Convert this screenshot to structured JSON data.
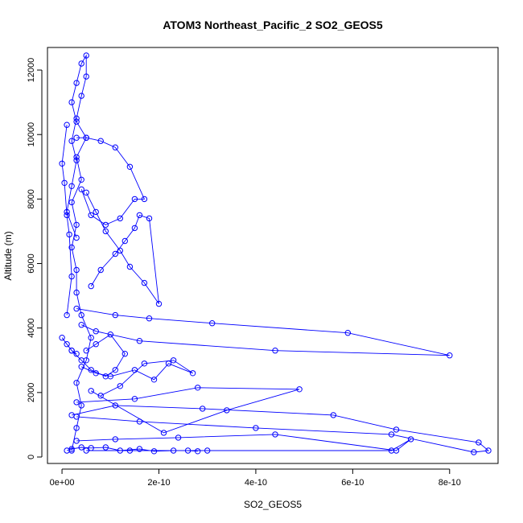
{
  "chart_data": {
    "type": "line",
    "title": "ATOM3 Northeast_Pacific_2 SO2_GEOS5",
    "xlabel": "SO2_GEOS5",
    "ylabel": "Altitude (m)",
    "xlim": [
      -3e-11,
      9e-10
    ],
    "ylim": [
      -200,
      12700
    ],
    "x_ticks": [
      0,
      2e-10,
      4e-10,
      6e-10,
      8e-10
    ],
    "x_tick_labels": [
      "0e+00",
      "2e-10",
      "4e-10",
      "6e-10",
      "8e-10"
    ],
    "y_ticks": [
      0,
      2000,
      4000,
      6000,
      8000,
      10000,
      12000
    ],
    "y_tick_labels": [
      "0",
      "2000",
      "4000",
      "6000",
      "8000",
      "10000",
      "12000"
    ],
    "series_color": "#0000ff",
    "marker": "open-circle",
    "grid": false,
    "series": [
      {
        "x": [
          2e-11,
          3e-11,
          4e-11,
          3e-11,
          5e-11,
          6e-11,
          4e-11,
          3e-11,
          3e-11,
          2e-11,
          3e-11,
          2e-11,
          4e-11,
          3e-11,
          5e-11,
          3e-11,
          2e-11,
          3e-11,
          4e-11,
          5e-11,
          5e-11,
          4e-11,
          3e-11,
          2e-11,
          3e-11,
          2e-11,
          1e-11,
          3e-11
        ],
        "y": [
          200,
          900,
          1600,
          2300,
          3000,
          3700,
          4400,
          5100,
          5800,
          6500,
          7200,
          7900,
          8600,
          9300,
          9900,
          10400,
          11000,
          11600,
          12200,
          12450,
          11800,
          11200,
          10500,
          9800,
          9200,
          8400,
          7600,
          6800
        ]
      },
      {
        "x": [
          3e-11,
          1.1e-10,
          1.8e-10,
          3.1e-10,
          5.9e-10,
          8e-10,
          4.4e-10,
          1.6e-10,
          7e-11,
          4e-11
        ],
        "y": [
          4600,
          4400,
          4300,
          4150,
          3850,
          3150,
          3300,
          3600,
          3900,
          4100
        ]
      },
      {
        "x": [
          3e-11,
          1.5e-10,
          2.8e-10,
          4.9e-10,
          3.4e-10,
          2.1e-10,
          6e-11
        ],
        "y": [
          1700,
          1800,
          2150,
          2100,
          1450,
          750,
          2050
        ]
      },
      {
        "x": [
          2e-11,
          1.1e-10,
          2.9e-10,
          5.6e-10,
          6.9e-10,
          8.6e-10,
          8.8e-10,
          8.5e-10,
          6.8e-10,
          4e-10,
          1.6e-10,
          3e-11
        ],
        "y": [
          1300,
          1600,
          1500,
          1300,
          850,
          450,
          200,
          150,
          700,
          900,
          1100,
          1250
        ]
      },
      {
        "x": [
          3e-11,
          1.1e-10,
          2.4e-10,
          4.4e-10,
          6.9e-10,
          7.2e-10,
          6.8e-10,
          3e-10,
          1.4e-10,
          5e-11
        ],
        "y": [
          500,
          550,
          600,
          700,
          200,
          550,
          200,
          200,
          200,
          200
        ]
      },
      {
        "x": [
          1e-11,
          2e-11,
          4e-11,
          6e-11,
          9e-11,
          1.2e-10,
          1.6e-10,
          1.9e-10,
          2.3e-10,
          2.6e-10,
          2.8e-10
        ],
        "y": [
          200,
          250,
          300,
          280,
          300,
          200,
          250,
          180,
          200,
          200,
          180
        ]
      },
      {
        "x": [
          6e-11,
          8e-11,
          1.1e-10,
          1.3e-10,
          1.5e-10,
          1.6e-10,
          1.8e-10,
          2e-10,
          1.7e-10,
          1.4e-10,
          1.2e-10,
          9e-11,
          7e-11,
          5e-11
        ],
        "y": [
          5300,
          5800,
          6300,
          6700,
          7100,
          7500,
          7400,
          4750,
          5400,
          5900,
          6400,
          7000,
          7600,
          8200
        ]
      },
      {
        "x": [
          3e-11,
          5e-11,
          8e-11,
          1.1e-10,
          1.4e-10,
          1.7e-10,
          1.5e-10,
          1.2e-10,
          9e-11,
          6e-11,
          4e-11
        ],
        "y": [
          9900,
          9900,
          9800,
          9600,
          9000,
          8000,
          8000,
          7400,
          7200,
          7500,
          8300
        ]
      },
      {
        "x": [
          2e-11,
          4e-11,
          6e-11,
          9e-11,
          1.1e-10,
          1.3e-10,
          1e-10,
          7e-11,
          5e-11
        ],
        "y": [
          3300,
          3000,
          2700,
          2500,
          2700,
          3200,
          3800,
          3500,
          3300
        ]
      },
      {
        "x": [
          4e-11,
          7e-11,
          1e-10,
          1.5e-10,
          1.9e-10,
          2.2e-10,
          2.7e-10,
          2.3e-10,
          1.7e-10,
          1.2e-10,
          8e-11
        ],
        "y": [
          2800,
          2600,
          2500,
          2700,
          2400,
          2900,
          2600,
          3000,
          2900,
          2200,
          1900
        ]
      },
      {
        "x": [
          1e-11,
          0.0,
          5e-12,
          1e-11,
          1.5e-11,
          2e-11,
          1e-11
        ],
        "y": [
          10300,
          9100,
          8500,
          7500,
          6900,
          5600,
          4400
        ]
      },
      {
        "x": [
          0.0,
          1e-11,
          2e-11,
          3e-11
        ],
        "y": [
          3700,
          3500,
          3300,
          3200
        ]
      }
    ]
  }
}
